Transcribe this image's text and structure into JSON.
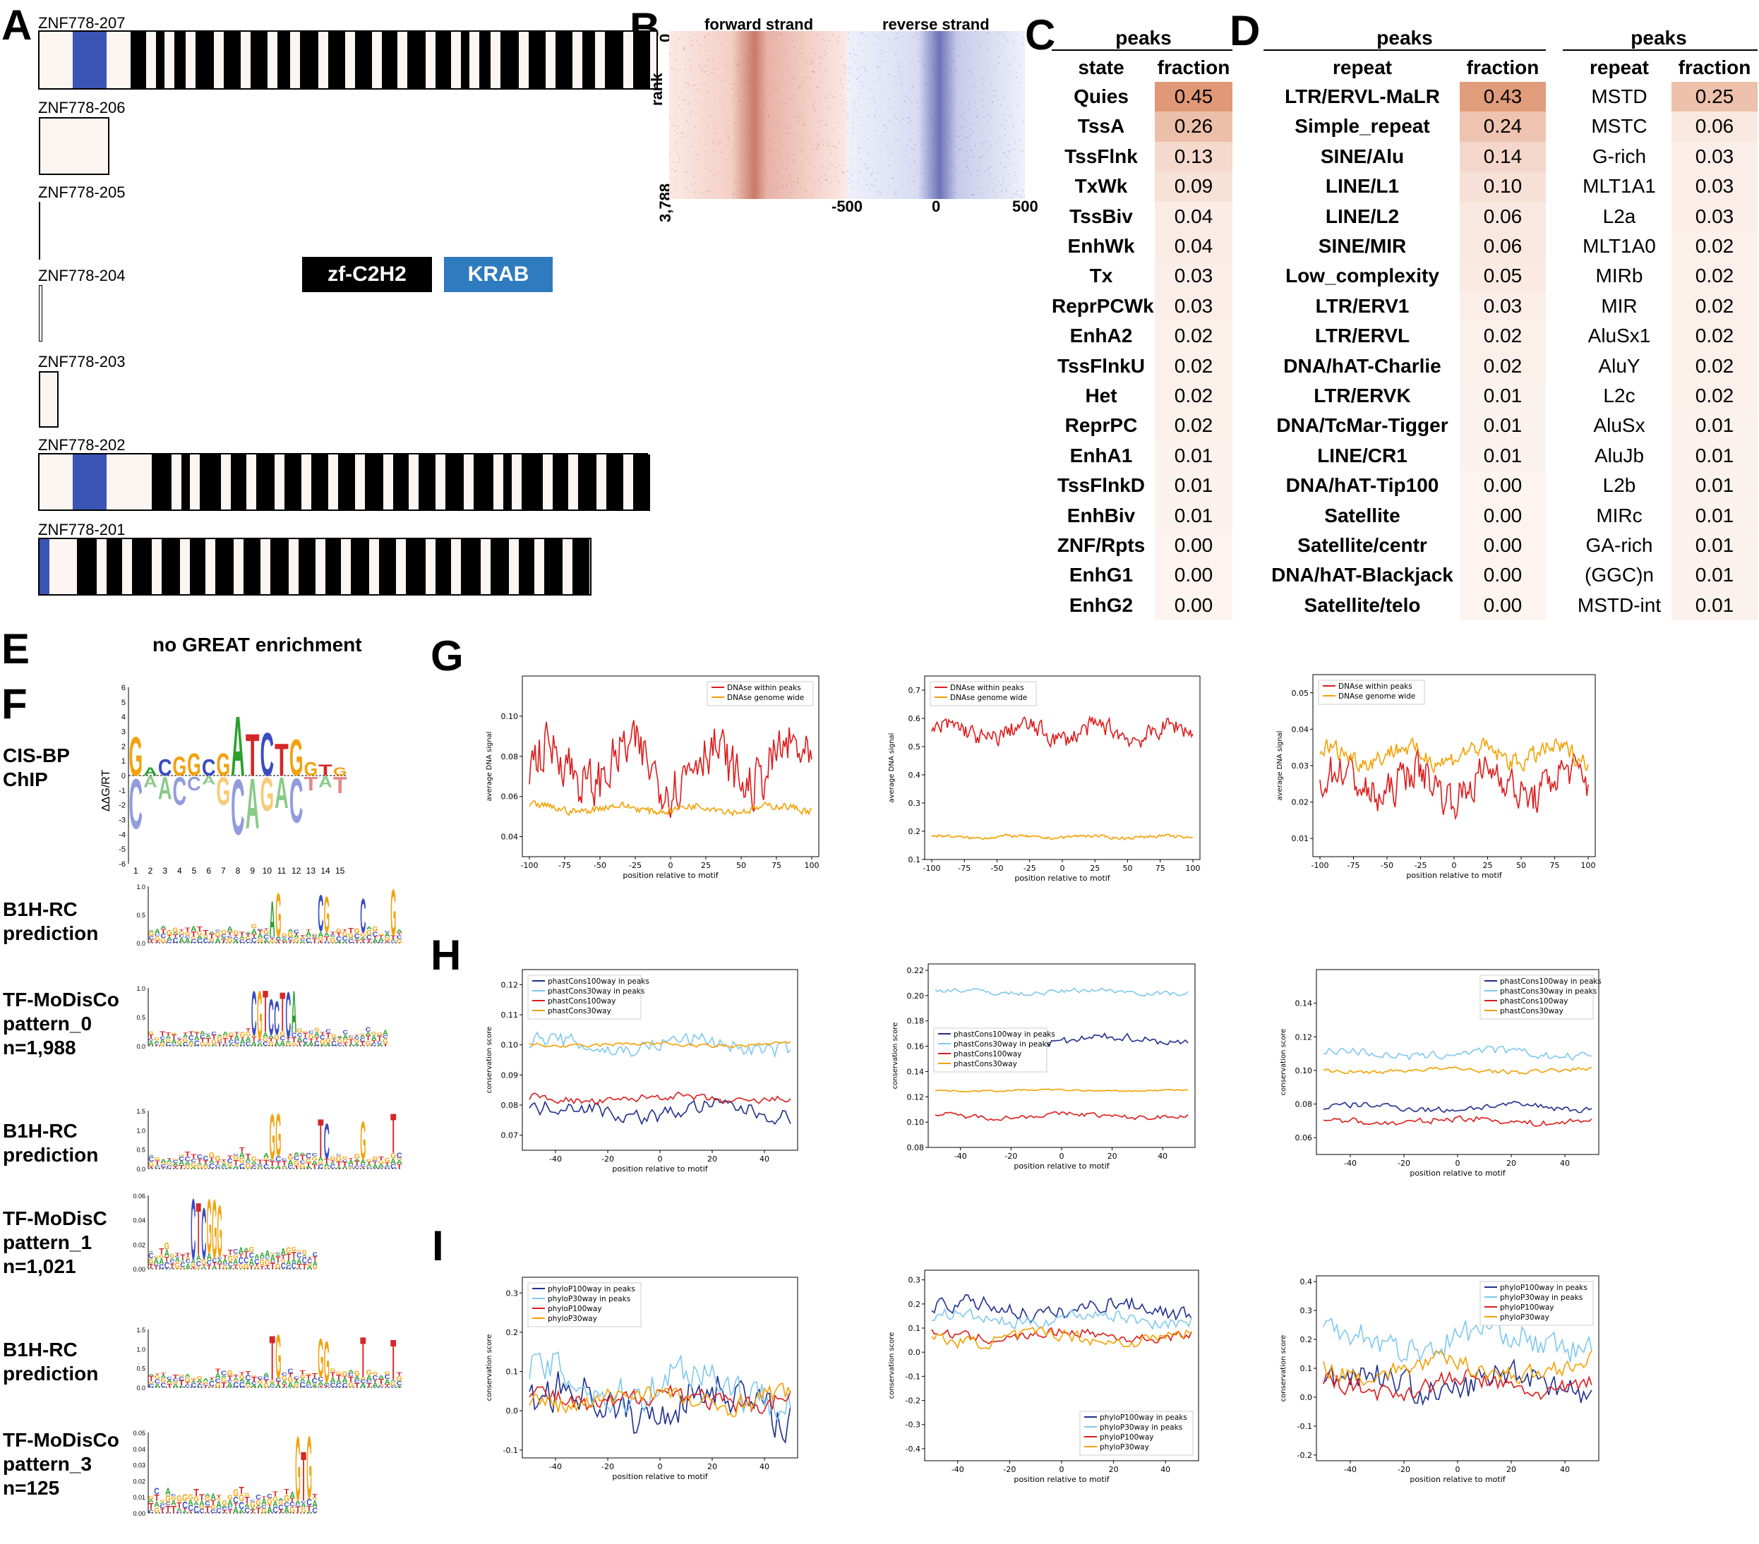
{
  "panels": {
    "A": "A",
    "B": "B",
    "C": "C",
    "D": "D",
    "E": "E",
    "F": "F",
    "G": "G",
    "H": "H",
    "I": "I"
  },
  "panel_A": {
    "transcripts": [
      "ZNF778-207",
      "ZNF778-206",
      "ZNF778-205",
      "ZNF778-204",
      "ZNF778-203",
      "ZNF778-202",
      "ZNF778-201"
    ],
    "legend": {
      "zf": "zf-C2H2",
      "krab": "KRAB"
    },
    "colors": {
      "zf": "#000000",
      "krab": "#3b55b5",
      "krab_legend": "#2f7bbf",
      "utr": "#fdf5f1"
    }
  },
  "panel_B": {
    "forward": "forward strand",
    "reverse": "reverse strand",
    "rank_label": "rank",
    "rank_top": "0",
    "rank_bottom": "3,788",
    "ticks": [
      "-500",
      "0",
      "500"
    ]
  },
  "panel_C": {
    "title": "peaks",
    "col1": "state",
    "col2": "fraction",
    "rows": [
      [
        "Quies",
        "0.45"
      ],
      [
        "TssA",
        "0.26"
      ],
      [
        "TssFlnk",
        "0.13"
      ],
      [
        "TxWk",
        "0.09"
      ],
      [
        "TssBiv",
        "0.04"
      ],
      [
        "EnhWk",
        "0.04"
      ],
      [
        "Tx",
        "0.03"
      ],
      [
        "ReprPCWk",
        "0.03"
      ],
      [
        "EnhA2",
        "0.02"
      ],
      [
        "TssFlnkU",
        "0.02"
      ],
      [
        "Het",
        "0.02"
      ],
      [
        "ReprPC",
        "0.02"
      ],
      [
        "EnhA1",
        "0.01"
      ],
      [
        "TssFlnkD",
        "0.01"
      ],
      [
        "EnhBiv",
        "0.01"
      ],
      [
        "ZNF/Rpts",
        "0.00"
      ],
      [
        "EnhG1",
        "0.00"
      ],
      [
        "EnhG2",
        "0.00"
      ]
    ]
  },
  "panel_D1": {
    "title": "peaks",
    "col1": "repeat",
    "col2": "fraction",
    "rows": [
      [
        "LTR/ERVL-MaLR",
        "0.43"
      ],
      [
        "Simple_repeat",
        "0.24"
      ],
      [
        "SINE/Alu",
        "0.14"
      ],
      [
        "LINE/L1",
        "0.10"
      ],
      [
        "LINE/L2",
        "0.06"
      ],
      [
        "SINE/MIR",
        "0.06"
      ],
      [
        "Low_complexity",
        "0.05"
      ],
      [
        "LTR/ERV1",
        "0.03"
      ],
      [
        "LTR/ERVL",
        "0.02"
      ],
      [
        "DNA/hAT-Charlie",
        "0.02"
      ],
      [
        "LTR/ERVK",
        "0.01"
      ],
      [
        "DNA/TcMar-Tigger",
        "0.01"
      ],
      [
        "LINE/CR1",
        "0.01"
      ],
      [
        "DNA/hAT-Tip100",
        "0.00"
      ],
      [
        "Satellite",
        "0.00"
      ],
      [
        "Satellite/centr",
        "0.00"
      ],
      [
        "DNA/hAT-Blackjack",
        "0.00"
      ],
      [
        "Satellite/telo",
        "0.00"
      ]
    ]
  },
  "panel_D2": {
    "title": "peaks",
    "col1": "repeat",
    "col2": "fraction",
    "rows": [
      [
        "MSTD",
        "0.25"
      ],
      [
        "MSTC",
        "0.06"
      ],
      [
        "G-rich",
        "0.03"
      ],
      [
        "MLT1A1",
        "0.03"
      ],
      [
        "L2a",
        "0.03"
      ],
      [
        "MLT1A0",
        "0.02"
      ],
      [
        "MIRb",
        "0.02"
      ],
      [
        "MIR",
        "0.02"
      ],
      [
        "AluSx1",
        "0.02"
      ],
      [
        "AluY",
        "0.02"
      ],
      [
        "L2c",
        "0.02"
      ],
      [
        "AluSx",
        "0.01"
      ],
      [
        "AluJb",
        "0.01"
      ],
      [
        "L2b",
        "0.01"
      ],
      [
        "MIRc",
        "0.01"
      ],
      [
        "GA-rich",
        "0.01"
      ],
      [
        "(GGC)n",
        "0.01"
      ],
      [
        "MSTD-int",
        "0.01"
      ]
    ]
  },
  "panel_E": {
    "text": "no GREAT enrichment"
  },
  "panel_F": {
    "labels": [
      "CIS-BP\nChIP",
      "B1H-RC\nprediction",
      "TF-MoDisCo\npattern_0\nn=1,988",
      "B1H-RC\nprediction",
      "TF-MoDisC\npattern_1\nn=1,021",
      "B1H-RC\nprediction",
      "TF-MoDisCo\npattern_3\nn=125"
    ],
    "ddg_label": "ΔΔG/RT"
  },
  "chart_data": [
    {
      "panel": "G",
      "type": "line",
      "xlabel": "position relative to motif",
      "ylabel": "average DNA signal",
      "ylim": [
        0.03,
        0.12
      ],
      "x_range": [
        -100,
        100
      ],
      "series": [
        {
          "name": "DNAse within peaks",
          "color": "#dd1c1c",
          "level": 0.075,
          "noise": 0.02
        },
        {
          "name": "DNAse genome wide",
          "color": "#f5a000",
          "level": 0.054,
          "noise": 0.003
        }
      ],
      "xticks": [
        "-100",
        "-75",
        "-50",
        "-25",
        "0",
        "25",
        "50",
        "75",
        "100"
      ],
      "yticks": [
        "0.04",
        "0.06",
        "0.08",
        "0.10"
      ],
      "legend": "top-right"
    },
    {
      "panel": "G",
      "type": "line",
      "xlabel": "position relative to motif",
      "ylabel": "average DNA signal",
      "ylim": [
        0.1,
        0.75
      ],
      "x_range": [
        -100,
        100
      ],
      "series": [
        {
          "name": "DNAse within peaks",
          "color": "#dd1c1c",
          "level": 0.55,
          "noise": 0.05
        },
        {
          "name": "DNAse genome wide",
          "color": "#f5a000",
          "level": 0.18,
          "noise": 0.008
        }
      ],
      "xticks": [
        "-100",
        "-75",
        "-50",
        "-25",
        "0",
        "25",
        "50",
        "75",
        "100"
      ],
      "yticks": [
        "0.1",
        "0.2",
        "0.3",
        "0.4",
        "0.5",
        "0.6",
        "0.7"
      ],
      "legend": "top-left"
    },
    {
      "panel": "G",
      "type": "line",
      "xlabel": "position relative to motif",
      "ylabel": "average DNA signal",
      "ylim": [
        0.005,
        0.055
      ],
      "x_range": [
        -100,
        100
      ],
      "series": [
        {
          "name": "DNAse within peaks",
          "color": "#dd1c1c",
          "level": 0.025,
          "noise": 0.008
        },
        {
          "name": "DNAse genome wide",
          "color": "#f5a000",
          "level": 0.033,
          "noise": 0.004
        }
      ],
      "xticks": [
        "-100",
        "-75",
        "-50",
        "-25",
        "0",
        "25",
        "50",
        "75",
        "100"
      ],
      "yticks": [
        "0.01",
        "0.02",
        "0.03",
        "0.04",
        "0.05"
      ],
      "legend": "top-left"
    },
    {
      "panel": "H",
      "type": "line",
      "xlabel": "position relative to motif",
      "ylabel": "conservation score",
      "ylim": [
        0.065,
        0.125
      ],
      "x_range": [
        -50,
        50
      ],
      "series": [
        {
          "name": "phastCons100way in peaks",
          "color": "#1f2f8f",
          "level": 0.078,
          "noise": 0.004
        },
        {
          "name": "phastCons30way in peaks",
          "color": "#7fc8ee",
          "level": 0.1,
          "noise": 0.004
        },
        {
          "name": "phastCons100way",
          "color": "#dd1c1c",
          "level": 0.082,
          "noise": 0.002
        },
        {
          "name": "phastCons30way",
          "color": "#f5a000",
          "level": 0.1,
          "noise": 0.001
        }
      ],
      "xticks": [
        "-40",
        "-20",
        "0",
        "20",
        "40"
      ],
      "yticks": [
        "0.07",
        "0.08",
        "0.09",
        "0.10",
        "0.11",
        "0.12"
      ],
      "legend": "top-left"
    },
    {
      "panel": "H",
      "type": "line",
      "xlabel": "position relative to motif",
      "ylabel": "conservation score",
      "ylim": [
        0.08,
        0.225
      ],
      "x_range": [
        -50,
        50
      ],
      "series": [
        {
          "name": "phastCons100way in peaks",
          "color": "#1f2f8f",
          "level": 0.165,
          "noise": 0.005
        },
        {
          "name": "phastCons30way in peaks",
          "color": "#7fc8ee",
          "level": 0.203,
          "noise": 0.003
        },
        {
          "name": "phastCons100way",
          "color": "#dd1c1c",
          "level": 0.105,
          "noise": 0.003
        },
        {
          "name": "phastCons30way",
          "color": "#f5a000",
          "level": 0.125,
          "noise": 0.001
        }
      ],
      "xticks": [
        "-40",
        "-20",
        "0",
        "20",
        "40"
      ],
      "yticks": [
        "0.08",
        "0.10",
        "0.12",
        "0.14",
        "0.16",
        "0.18",
        "0.20",
        "0.22"
      ],
      "legend": "middle-left"
    },
    {
      "panel": "H",
      "type": "line",
      "xlabel": "position relative to motif",
      "ylabel": "conservation score",
      "ylim": [
        0.05,
        0.16
      ],
      "x_range": [
        -50,
        50
      ],
      "series": [
        {
          "name": "phastCons100way in peaks",
          "color": "#1f2f8f",
          "level": 0.078,
          "noise": 0.003
        },
        {
          "name": "phastCons30way in peaks",
          "color": "#7fc8ee",
          "level": 0.11,
          "noise": 0.004
        },
        {
          "name": "phastCons100way",
          "color": "#dd1c1c",
          "level": 0.07,
          "noise": 0.003
        },
        {
          "name": "phastCons30way",
          "color": "#f5a000",
          "level": 0.1,
          "noise": 0.002
        }
      ],
      "xticks": [
        "-40",
        "-20",
        "0",
        "20",
        "40"
      ],
      "yticks": [
        "0.06",
        "0.08",
        "0.10",
        "0.12",
        "0.14"
      ],
      "legend": "top-right"
    },
    {
      "panel": "I",
      "type": "line",
      "xlabel": "position relative to motif",
      "ylabel": "conservation score",
      "ylim": [
        -0.12,
        0.34
      ],
      "x_range": [
        -50,
        50
      ],
      "series": [
        {
          "name": "phyloP100way in peaks",
          "color": "#1f2f8f",
          "level": 0.02,
          "noise": 0.08
        },
        {
          "name": "phyloP30way in peaks",
          "color": "#7fc8ee",
          "level": 0.07,
          "noise": 0.08
        },
        {
          "name": "phyloP100way",
          "color": "#dd1c1c",
          "level": 0.03,
          "noise": 0.04
        },
        {
          "name": "phyloP30way",
          "color": "#f5a000",
          "level": 0.03,
          "noise": 0.04
        }
      ],
      "xticks": [
        "-40",
        "-20",
        "0",
        "20",
        "40"
      ],
      "yticks": [
        "-0.1",
        "0.0",
        "0.1",
        "0.2",
        "0.3"
      ],
      "legend": "top-left"
    },
    {
      "panel": "I",
      "type": "line",
      "xlabel": "position relative to motif",
      "ylabel": "conservation score",
      "ylim": [
        -0.45,
        0.34
      ],
      "x_range": [
        -50,
        50
      ],
      "series": [
        {
          "name": "phyloP100way in peaks",
          "color": "#1f2f8f",
          "level": 0.18,
          "noise": 0.05
        },
        {
          "name": "phyloP30way in peaks",
          "color": "#7fc8ee",
          "level": 0.14,
          "noise": 0.04
        },
        {
          "name": "phyloP100way",
          "color": "#dd1c1c",
          "level": 0.07,
          "noise": 0.03
        },
        {
          "name": "phyloP30way",
          "color": "#f5a000",
          "level": 0.06,
          "noise": 0.04
        }
      ],
      "xticks": [
        "-40",
        "-20",
        "0",
        "20",
        "40"
      ],
      "yticks": [
        "-0.4",
        "-0.3",
        "-0.2",
        "-0.1",
        "0.0",
        "0.1",
        "0.2",
        "0.3"
      ],
      "legend": "bottom-right"
    },
    {
      "panel": "I",
      "type": "line",
      "xlabel": "position relative to motif",
      "ylabel": "conservation score",
      "ylim": [
        -0.22,
        0.42
      ],
      "x_range": [
        -50,
        50
      ],
      "series": [
        {
          "name": "phyloP100way in peaks",
          "color": "#1f2f8f",
          "level": 0.05,
          "noise": 0.08
        },
        {
          "name": "phyloP30way in peaks",
          "color": "#7fc8ee",
          "level": 0.2,
          "noise": 0.08
        },
        {
          "name": "phyloP100way",
          "color": "#dd1c1c",
          "level": 0.04,
          "noise": 0.05
        },
        {
          "name": "phyloP30way",
          "color": "#f5a000",
          "level": 0.1,
          "noise": 0.05
        }
      ],
      "xticks": [
        "-40",
        "-20",
        "0",
        "20",
        "40"
      ],
      "yticks": [
        "-0.2",
        "-0.1",
        "0.0",
        "0.1",
        "0.2",
        "0.3",
        "0.4"
      ],
      "legend": "top-right"
    }
  ]
}
